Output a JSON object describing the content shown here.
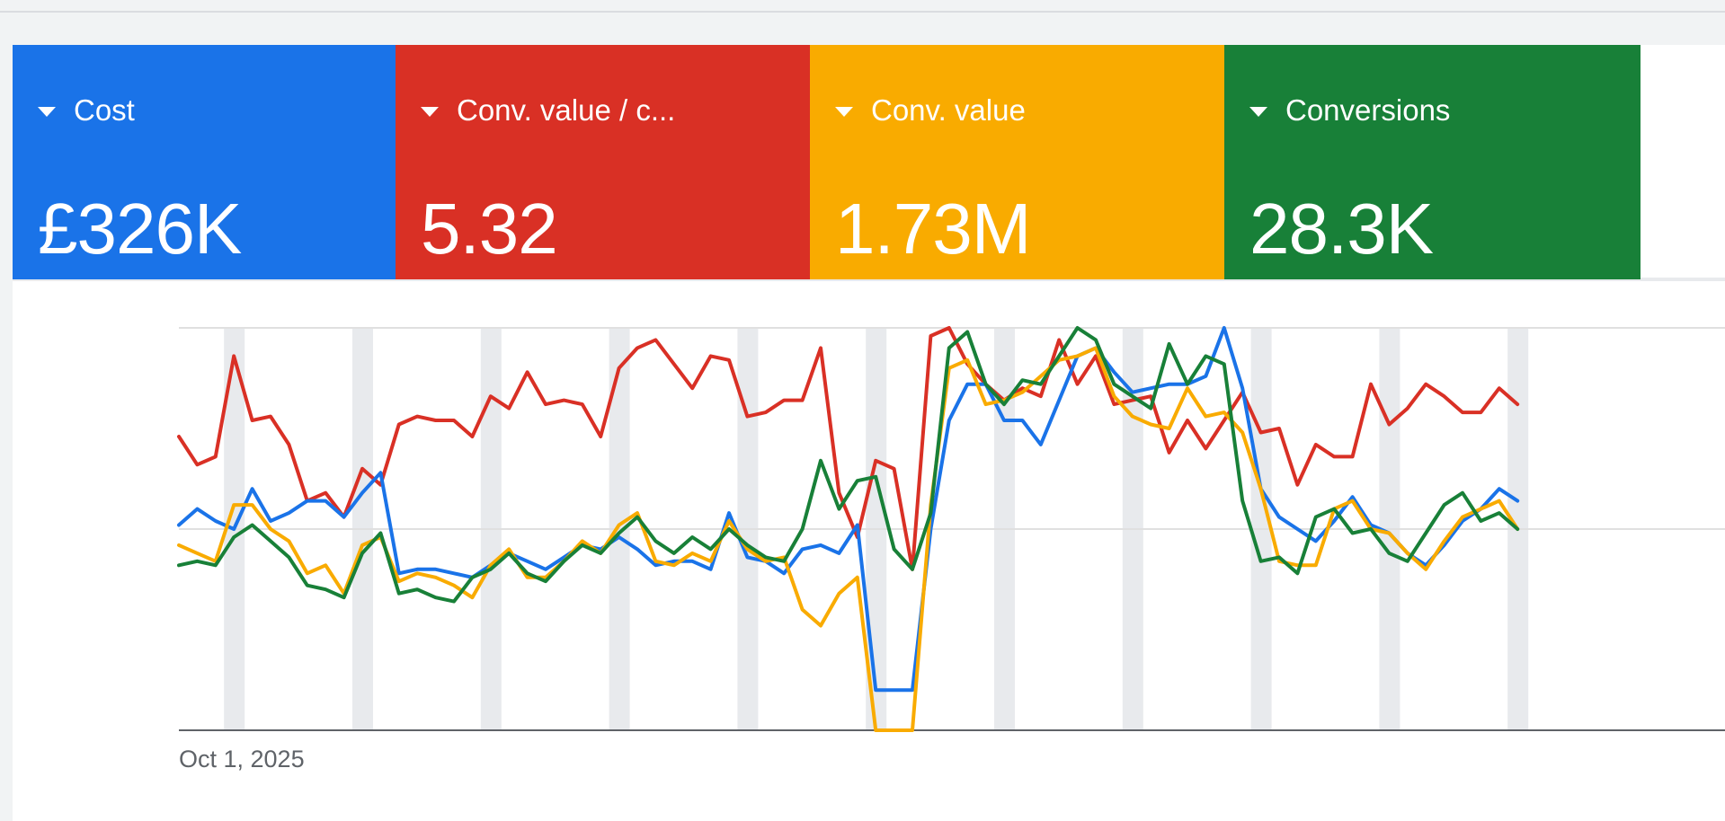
{
  "scorecards": [
    {
      "label": "Cost",
      "value": "£326K",
      "color": "#1a73e8"
    },
    {
      "label": "Conv. value / c...",
      "value": "5.32",
      "color": "#d93025"
    },
    {
      "label": "Conv. value",
      "value": "1.73M",
      "color": "#f9ab00"
    },
    {
      "label": "Conversions",
      "value": "28.3K",
      "color": "#188038"
    }
  ],
  "chart": {
    "x_start_label": "Oct 1, 2025"
  },
  "chart_data": {
    "type": "line",
    "x_start": "Oct 1, 2025",
    "xlabel": "",
    "ylabel": "",
    "grid": true,
    "y_scale": "normalized 0-100 (no y-axis labels shown)",
    "ylim": [
      0,
      100
    ],
    "weekend_bands": true,
    "series": [
      {
        "name": "Conv. value / c...",
        "color": "#d93025",
        "values": [
          73,
          66,
          68,
          93,
          77,
          78,
          71,
          57,
          59,
          53,
          65,
          61,
          76,
          78,
          77,
          77,
          73,
          83,
          80,
          89,
          81,
          82,
          81,
          73,
          90,
          95,
          97,
          91,
          85,
          93,
          92,
          78,
          79,
          82,
          82,
          95,
          59,
          48,
          67,
          65,
          40,
          98,
          100,
          91,
          86,
          82,
          85,
          83,
          97,
          86,
          93,
          81,
          82,
          83,
          69,
          77,
          70,
          77,
          84,
          74,
          75,
          61,
          71,
          68,
          68,
          86,
          76,
          80,
          86,
          83,
          79,
          79,
          85,
          81
        ]
      },
      {
        "name": "Cost",
        "color": "#1a73e8",
        "values": [
          51,
          55,
          52,
          50,
          60,
          52,
          54,
          57,
          57,
          53,
          59,
          64,
          39,
          40,
          40,
          39,
          38,
          41,
          44,
          42,
          40,
          43,
          46,
          45,
          48,
          45,
          41,
          42,
          42,
          40,
          54,
          43,
          42,
          39,
          45,
          46,
          44,
          51,
          10,
          10,
          10,
          50,
          77,
          86,
          86,
          77,
          77,
          71,
          82,
          93,
          95,
          89,
          84,
          85,
          86,
          86,
          88,
          100,
          85,
          60,
          53,
          50,
          47,
          52,
          58,
          51,
          49,
          44,
          41,
          46,
          52,
          55,
          60,
          57
        ]
      },
      {
        "name": "Conv. value",
        "color": "#f9ab00",
        "values": [
          46,
          44,
          42,
          56,
          56,
          50,
          47,
          39,
          41,
          34,
          46,
          48,
          37,
          39,
          38,
          36,
          33,
          41,
          45,
          38,
          38,
          42,
          47,
          44,
          51,
          54,
          42,
          41,
          44,
          42,
          52,
          45,
          42,
          43,
          30,
          26,
          34,
          38,
          0,
          0,
          0,
          56,
          90,
          92,
          81,
          82,
          84,
          88,
          92,
          93,
          95,
          83,
          78,
          76,
          75,
          85,
          78,
          79,
          74,
          60,
          42,
          41,
          41,
          55,
          57,
          50,
          49,
          44,
          40,
          47,
          53,
          55,
          57,
          50
        ]
      },
      {
        "name": "Conversions",
        "color": "#188038",
        "values": [
          41,
          42,
          41,
          48,
          51,
          47,
          43,
          36,
          35,
          33,
          44,
          49,
          34,
          35,
          33,
          32,
          38,
          40,
          44,
          39,
          37,
          42,
          46,
          44,
          49,
          53,
          47,
          44,
          48,
          45,
          50,
          46,
          43,
          42,
          50,
          67,
          55,
          62,
          63,
          45,
          40,
          54,
          95,
          99,
          86,
          81,
          87,
          86,
          93,
          100,
          97,
          86,
          83,
          80,
          96,
          86,
          93,
          91,
          57,
          42,
          43,
          39,
          53,
          55,
          49,
          50,
          44,
          42,
          49,
          56,
          59,
          52,
          54,
          50
        ]
      }
    ]
  }
}
